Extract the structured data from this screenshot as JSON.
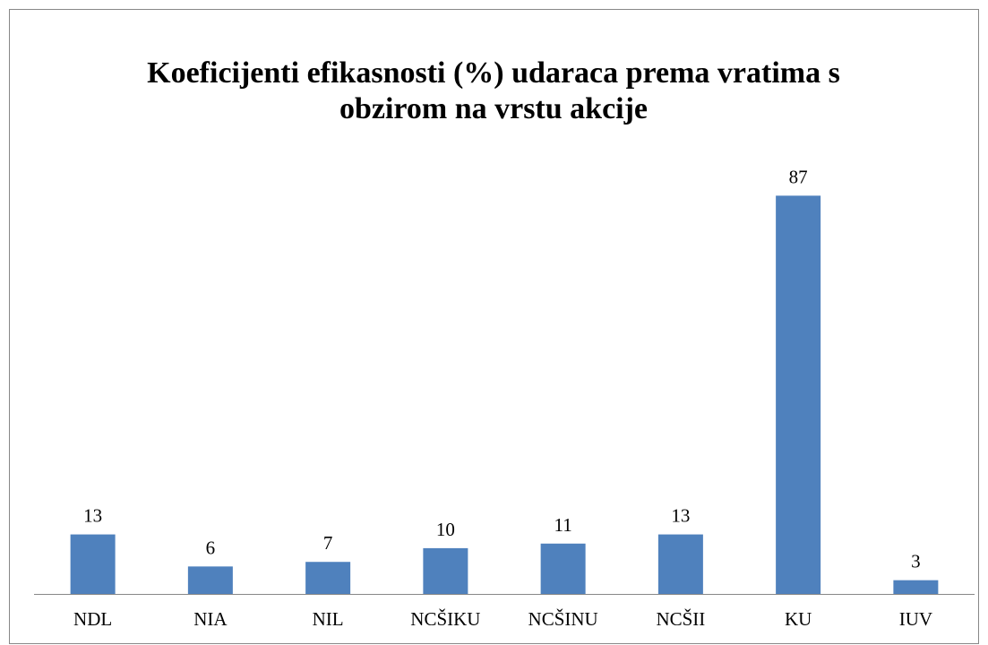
{
  "chart_data": {
    "type": "bar",
    "title": "Koeficijenti efikasnosti (%) udaraca prema vratima s obzirom na vrstu akcije",
    "categories": [
      "NDL",
      "NIA",
      "NIL",
      "NCŠIKU",
      "NCŠINU",
      "NCŠII",
      "KU",
      "IUV"
    ],
    "values": [
      13,
      6,
      7,
      10,
      11,
      13,
      87,
      3
    ],
    "color": "#4f81bd"
  }
}
